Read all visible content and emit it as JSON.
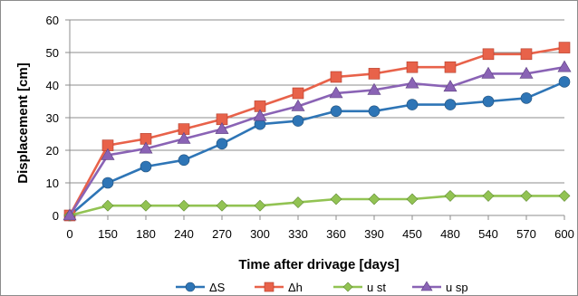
{
  "chart_data": {
    "type": "line",
    "xlabel": "Time after drivage [days]",
    "ylabel": "Displacement [cm]",
    "categories": [
      "0",
      "150",
      "180",
      "240",
      "270",
      "300",
      "330",
      "360",
      "390",
      "450",
      "480",
      "540",
      "570",
      "600"
    ],
    "ylim": [
      0,
      60
    ],
    "yticks": [
      0,
      10,
      20,
      30,
      40,
      50,
      60
    ],
    "grid": true,
    "legend": "bottom",
    "series": [
      {
        "name": "ΔS",
        "color": "#2e75b6",
        "marker": "circle",
        "values": [
          0,
          10,
          15,
          17,
          22,
          28,
          29,
          32,
          32,
          34,
          34,
          35,
          36,
          41
        ]
      },
      {
        "name": "Δh",
        "color": "#e8624a",
        "marker": "square",
        "values": [
          0,
          21.5,
          23.5,
          26.5,
          29.5,
          33.5,
          37.5,
          42.5,
          43.5,
          45.5,
          45.5,
          49.5,
          49.5,
          51.5
        ]
      },
      {
        "name": "u st",
        "color": "#92c353",
        "marker": "diamond",
        "values": [
          0,
          3,
          3,
          3,
          3,
          3,
          4,
          5,
          5,
          5,
          6,
          6,
          6,
          6
        ]
      },
      {
        "name": "u sp",
        "color": "#8a63b5",
        "marker": "triangle",
        "values": [
          0,
          18.5,
          20.5,
          23.5,
          26.5,
          30.5,
          33.5,
          37.5,
          38.5,
          40.5,
          39.5,
          43.5,
          43.5,
          45.5
        ]
      }
    ]
  }
}
